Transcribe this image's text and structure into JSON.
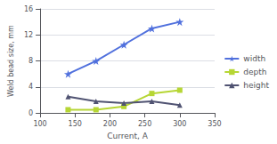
{
  "chart_data": {
    "type": "line",
    "x": [
      140,
      180,
      220,
      260,
      300
    ],
    "series": [
      {
        "name": "width",
        "marker": "star",
        "values": [
          6.0,
          8.0,
          10.5,
          13.0,
          14.0
        ]
      },
      {
        "name": "depth",
        "marker": "square",
        "values": [
          0.5,
          0.5,
          1.0,
          3.0,
          3.5
        ]
      },
      {
        "name": "height",
        "marker": "triangle",
        "values": [
          2.5,
          1.8,
          1.5,
          1.8,
          1.2
        ]
      }
    ],
    "xlabel": "Current, A",
    "ylabel": "Weld bead size, mm",
    "xlim": [
      100,
      350
    ],
    "ylim": [
      0,
      16
    ],
    "xticks": [
      100,
      150,
      200,
      250,
      300,
      350
    ],
    "yticks": [
      0,
      4,
      8,
      12,
      16
    ],
    "grid": true,
    "legend": "right"
  }
}
